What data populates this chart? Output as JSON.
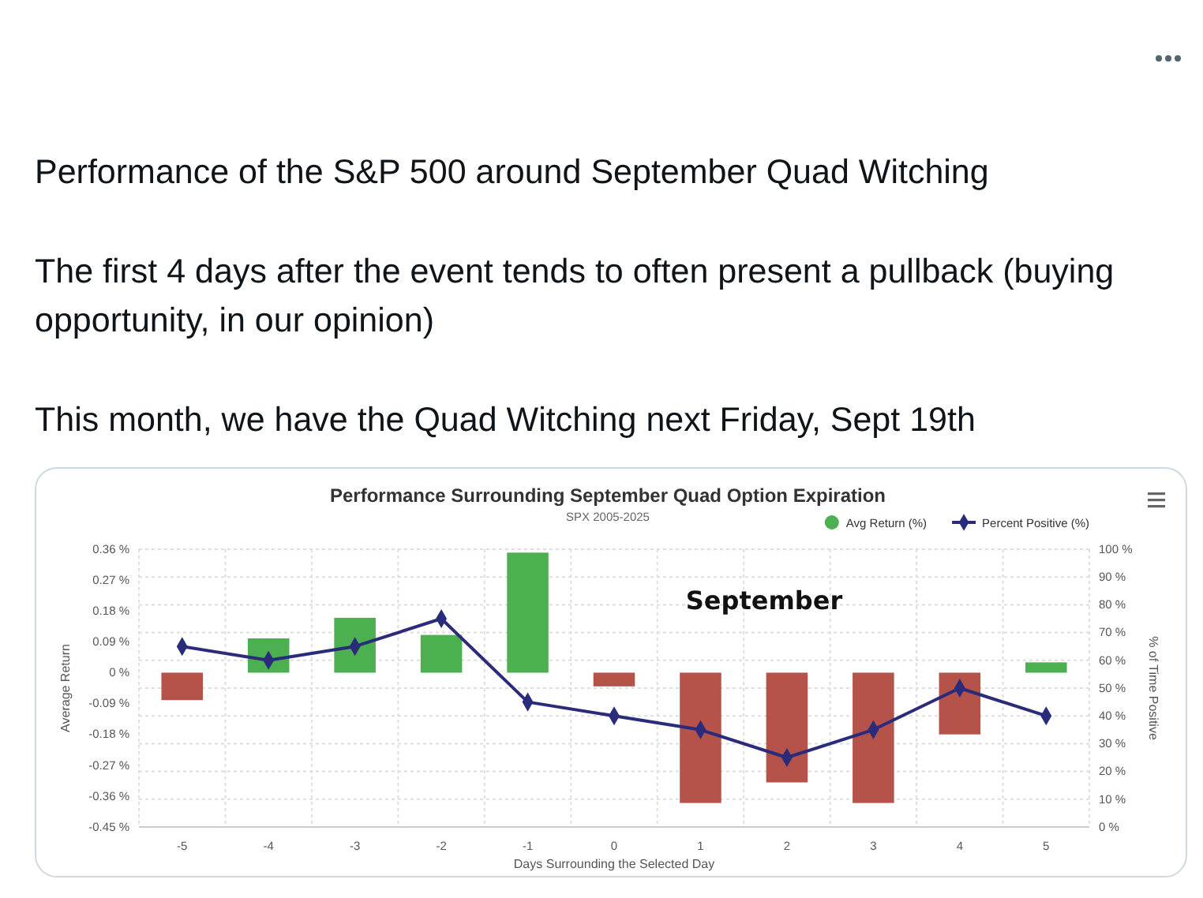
{
  "chart_data": {
    "type": "bar",
    "title": "Performance Surrounding September Quad Option Expiration",
    "subtitle": "SPX 2005-2025",
    "xlabel": "Days Surrounding the Selected Day",
    "ylabel": "Average Return",
    "y2label": "% of Time Positive",
    "annotations": [
      "Performance of the S&P 500 around September Quad Witching",
      "The first 4 days after the event tends to often present a pullback (buying opportunity, in our opinion)",
      "This month, we have the Quad Witching next Friday, Sept 19th",
      "September"
    ],
    "categories": [
      "-5",
      "-4",
      "-3",
      "-2",
      "-1",
      "0",
      "1",
      "2",
      "3",
      "4",
      "5"
    ],
    "series": [
      {
        "name": "Avg Return (%)",
        "color": "#4caf50",
        "colors": [
          "#b5524a",
          "#4caf50",
          "#4caf50",
          "#4caf50",
          "#4caf50",
          "#b5524a",
          "#b5524a",
          "#b5524a",
          "#b5524a",
          "#b5524a",
          "#4caf50"
        ],
        "values": [
          -0.08,
          0.1,
          0.16,
          0.11,
          0.35,
          -0.04,
          -0.38,
          -0.32,
          -0.38,
          -0.18,
          0.03
        ]
      },
      {
        "name": "Percent Positive (%)",
        "type": "line",
        "axis": "y2",
        "color": "#2b2b7c",
        "values": [
          65,
          60,
          65,
          75,
          45,
          40,
          35,
          25,
          35,
          50,
          40
        ]
      }
    ],
    "ylim": [
      -0.45,
      0.36
    ],
    "yticks": [
      {
        "value": -0.45,
        "label": "-0.45 %"
      },
      {
        "value": -0.36,
        "label": "-0.36 %"
      },
      {
        "value": -0.27,
        "label": "-0.27 %"
      },
      {
        "value": -0.18,
        "label": "-0.18 %"
      },
      {
        "value": -0.09,
        "label": "-0.09 %"
      },
      {
        "value": 0,
        "label": "0 %"
      },
      {
        "value": 0.09,
        "label": "0.09 %"
      },
      {
        "value": 0.18,
        "label": "0.18 %"
      },
      {
        "value": 0.27,
        "label": "0.27 %"
      },
      {
        "value": 0.36,
        "label": "0.36 %"
      }
    ],
    "y2lim": [
      0,
      100
    ],
    "y2ticks": [
      {
        "value": 0,
        "label": "0 %"
      },
      {
        "value": 10,
        "label": "10 %"
      },
      {
        "value": 20,
        "label": "20 %"
      },
      {
        "value": 30,
        "label": "30 %"
      },
      {
        "value": 40,
        "label": "40 %"
      },
      {
        "value": 50,
        "label": "50 %"
      },
      {
        "value": 60,
        "label": "60 %"
      },
      {
        "value": 70,
        "label": "70 %"
      },
      {
        "value": 80,
        "label": "80 %"
      },
      {
        "value": 90,
        "label": "90 %"
      },
      {
        "value": 100,
        "label": "100 %"
      }
    ],
    "grid": true,
    "legend": "top right",
    "marker": "diamond"
  }
}
